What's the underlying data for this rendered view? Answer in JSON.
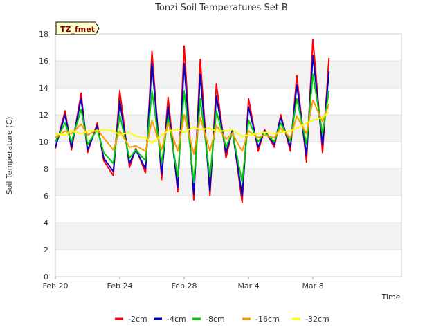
{
  "chart_data": {
    "type": "line",
    "title": "Tonzi Soil Temperatures Set B",
    "xlabel": "Time",
    "ylabel": "Soil Temperature (C)",
    "ylim": [
      0,
      18
    ],
    "xlim_days": [
      0,
      21.5
    ],
    "yticks": [
      0,
      2,
      4,
      6,
      8,
      10,
      12,
      14,
      16,
      18
    ],
    "xticks": [
      {
        "label": "Feb 20",
        "day": 0
      },
      {
        "label": "Feb 24",
        "day": 4
      },
      {
        "label": "Feb 28",
        "day": 8
      },
      {
        "label": "Mar 4",
        "day": 12
      },
      {
        "label": "Mar 8",
        "day": 16
      }
    ],
    "grid": "horizontal bands",
    "legend_position": "bottom",
    "badge": "TZ_fmet",
    "x": [
      0.0,
      0.6,
      1.0,
      1.6,
      2.0,
      2.6,
      3.0,
      3.6,
      4.0,
      4.6,
      5.0,
      5.6,
      6.0,
      6.6,
      7.0,
      7.6,
      8.0,
      8.6,
      9.0,
      9.6,
      10.0,
      10.6,
      11.0,
      11.6,
      12.0,
      12.6,
      13.0,
      13.6,
      14.0,
      14.6,
      15.0,
      15.6,
      16.0,
      16.6,
      17.0
    ],
    "series": [
      {
        "name": "-2cm",
        "color": "#ff0000",
        "values": [
          9.5,
          12.3,
          9.4,
          13.6,
          9.2,
          11.4,
          8.6,
          7.5,
          13.8,
          8.1,
          9.5,
          7.7,
          16.7,
          7.2,
          13.3,
          6.3,
          17.1,
          5.7,
          16.1,
          6.0,
          14.3,
          8.8,
          10.9,
          5.5,
          13.2,
          9.3,
          10.9,
          9.6,
          12.0,
          9.3,
          14.9,
          8.5,
          17.6,
          9.2,
          16.2
        ]
      },
      {
        "name": "-4cm",
        "color": "#0000cc",
        "values": [
          9.6,
          12.0,
          9.6,
          13.2,
          9.4,
          11.2,
          8.8,
          7.8,
          13.0,
          8.4,
          9.4,
          8.0,
          15.8,
          7.6,
          12.6,
          6.6,
          15.8,
          6.1,
          15.0,
          6.4,
          13.4,
          9.2,
          10.8,
          6.0,
          12.6,
          9.6,
          10.8,
          9.8,
          11.8,
          9.6,
          14.2,
          9.0,
          16.4,
          9.8,
          15.2
        ]
      },
      {
        "name": "-8cm",
        "color": "#00cc00",
        "values": [
          10.0,
          11.4,
          10.0,
          12.4,
          9.8,
          10.9,
          9.2,
          8.4,
          12.0,
          8.8,
          9.4,
          8.6,
          13.8,
          8.4,
          11.8,
          7.4,
          13.8,
          7.0,
          13.2,
          7.4,
          12.3,
          9.6,
          10.7,
          7.0,
          11.6,
          10.0,
          10.7,
          10.0,
          11.4,
          10.0,
          13.2,
          9.8,
          15.0,
          10.6,
          13.8
        ]
      },
      {
        "name": "-16cm",
        "color": "#ff9900",
        "values": [
          10.3,
          10.8,
          10.6,
          11.3,
          10.5,
          10.9,
          10.3,
          9.4,
          10.8,
          9.6,
          9.7,
          9.3,
          11.6,
          9.4,
          11.4,
          9.3,
          12.0,
          9.1,
          11.8,
          9.3,
          11.2,
          10.2,
          10.6,
          9.3,
          10.8,
          10.3,
          10.5,
          10.3,
          11.0,
          10.3,
          11.9,
          10.6,
          13.1,
          11.5,
          12.8
        ]
      },
      {
        "name": "-32cm",
        "color": "#ffff00",
        "values": [
          10.6,
          10.5,
          10.8,
          10.6,
          10.8,
          10.8,
          10.9,
          10.8,
          10.5,
          10.7,
          10.4,
          10.3,
          9.9,
          10.5,
          10.8,
          10.9,
          10.7,
          11.1,
          10.9,
          11.0,
          10.8,
          10.8,
          10.9,
          10.4,
          10.5,
          10.6,
          10.7,
          10.6,
          10.7,
          10.8,
          11.0,
          11.4,
          11.6,
          11.8,
          12.2
        ]
      }
    ]
  }
}
